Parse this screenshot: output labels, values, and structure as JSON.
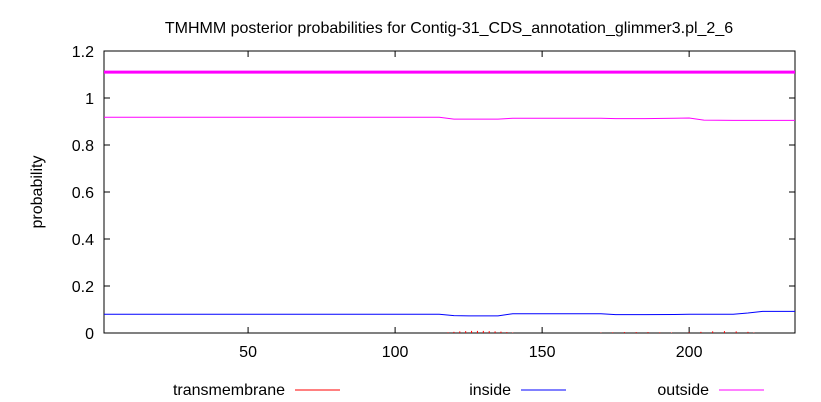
{
  "chart_data": {
    "type": "line",
    "title": "TMHMM posterior probabilities for Contig-31_CDS_annotation_glimmer3.pl_2_6",
    "xlabel": "",
    "ylabel": "probability",
    "xlim": [
      1,
      236
    ],
    "ylim": [
      0,
      1.2
    ],
    "xticks": [
      50,
      100,
      150,
      200
    ],
    "yticks": [
      0,
      0.2,
      0.4,
      0.6,
      0.8,
      1,
      1.2
    ],
    "xtick_labels": [
      "50",
      "100",
      "150",
      "200"
    ],
    "ytick_labels": [
      "0",
      "0.2",
      "0.4",
      "0.6",
      "0.8",
      "1",
      "1.2"
    ],
    "grid": false,
    "legend_position": "bottom",
    "reference_line": {
      "y": 1.11,
      "color": "#ff00ff"
    },
    "series": [
      {
        "name": "transmembrane",
        "color": "#ff0000",
        "style": "impulses",
        "points": [
          [
            118,
            0.003
          ],
          [
            120,
            0.005
          ],
          [
            122,
            0.007
          ],
          [
            124,
            0.008
          ],
          [
            126,
            0.009
          ],
          [
            128,
            0.009
          ],
          [
            130,
            0.009
          ],
          [
            132,
            0.008
          ],
          [
            134,
            0.007
          ],
          [
            136,
            0.006
          ],
          [
            138,
            0.004
          ],
          [
            140,
            0.002
          ],
          [
            170,
            0.002
          ],
          [
            174,
            0.003
          ],
          [
            178,
            0.004
          ],
          [
            182,
            0.004
          ],
          [
            186,
            0.004
          ],
          [
            190,
            0.003
          ],
          [
            194,
            0.002
          ],
          [
            200,
            0.003
          ],
          [
            204,
            0.005
          ],
          [
            208,
            0.007
          ],
          [
            212,
            0.008
          ],
          [
            216,
            0.007
          ],
          [
            220,
            0.005
          ],
          [
            222,
            0.002
          ]
        ]
      },
      {
        "name": "inside",
        "color": "#0000ff",
        "style": "line",
        "points": [
          [
            1,
            0.08
          ],
          [
            115,
            0.08
          ],
          [
            120,
            0.074
          ],
          [
            125,
            0.073
          ],
          [
            135,
            0.073
          ],
          [
            140,
            0.082
          ],
          [
            170,
            0.082
          ],
          [
            175,
            0.078
          ],
          [
            185,
            0.078
          ],
          [
            195,
            0.079
          ],
          [
            200,
            0.08
          ],
          [
            215,
            0.08
          ],
          [
            220,
            0.085
          ],
          [
            225,
            0.092
          ],
          [
            236,
            0.092
          ]
        ]
      },
      {
        "name": "outside",
        "color": "#ff00ff",
        "style": "line",
        "points": [
          [
            1,
            0.918
          ],
          [
            115,
            0.918
          ],
          [
            120,
            0.91
          ],
          [
            135,
            0.91
          ],
          [
            140,
            0.914
          ],
          [
            170,
            0.914
          ],
          [
            175,
            0.912
          ],
          [
            185,
            0.912
          ],
          [
            195,
            0.914
          ],
          [
            200,
            0.915
          ],
          [
            205,
            0.906
          ],
          [
            215,
            0.905
          ],
          [
            236,
            0.905
          ]
        ]
      }
    ]
  }
}
